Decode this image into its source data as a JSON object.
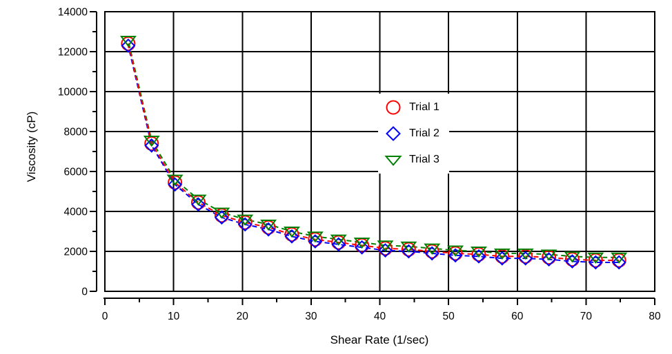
{
  "chart_data": {
    "type": "scatter",
    "title": "",
    "xlabel": "Shear Rate (1/sec)",
    "ylabel": "Viscosity (cP)",
    "xlim": [
      0,
      80
    ],
    "ylim": [
      0,
      14000
    ],
    "x_ticks": [
      0,
      10,
      20,
      30,
      40,
      50,
      60,
      70,
      80
    ],
    "x_minor_ticks": [
      5,
      15,
      25,
      35,
      45,
      55,
      65,
      75
    ],
    "y_ticks": [
      0,
      2000,
      4000,
      6000,
      8000,
      10000,
      12000,
      14000
    ],
    "y_minor_ticks": [
      1000,
      3000,
      5000,
      7000,
      9000,
      11000,
      13000
    ],
    "grid": true,
    "grid_color": "#000000",
    "axis_color": "#000000",
    "text_color": "#000000",
    "line_style": "dashed",
    "legend_position": "inside-upper-right",
    "x": [
      3.4,
      6.8,
      10.2,
      13.6,
      17.0,
      20.4,
      23.8,
      27.2,
      30.6,
      34.0,
      37.4,
      40.8,
      44.2,
      47.6,
      51.0,
      54.4,
      57.8,
      61.2,
      64.6,
      68.0,
      71.4,
      74.8
    ],
    "series": [
      {
        "name": "Trial 1",
        "marker": "circle",
        "color": "#ff0000",
        "values": [
          12400,
          7400,
          5450,
          4450,
          3800,
          3450,
          3200,
          2850,
          2600,
          2450,
          2300,
          2150,
          2100,
          2000,
          1900,
          1850,
          1750,
          1750,
          1700,
          1600,
          1550,
          1550
        ]
      },
      {
        "name": "Trial 2",
        "marker": "diamond",
        "color": "#0000ff",
        "values": [
          12300,
          7300,
          5350,
          4350,
          3700,
          3350,
          3100,
          2750,
          2500,
          2350,
          2200,
          2050,
          2000,
          1900,
          1800,
          1750,
          1650,
          1650,
          1600,
          1500,
          1450,
          1450
        ]
      },
      {
        "name": "Trial 3",
        "marker": "triangle-down",
        "color": "#008000",
        "values": [
          12550,
          7550,
          5600,
          4600,
          3950,
          3600,
          3350,
          3000,
          2750,
          2600,
          2450,
          2300,
          2250,
          2150,
          2050,
          2000,
          1900,
          1900,
          1850,
          1750,
          1700,
          1700
        ]
      }
    ]
  }
}
